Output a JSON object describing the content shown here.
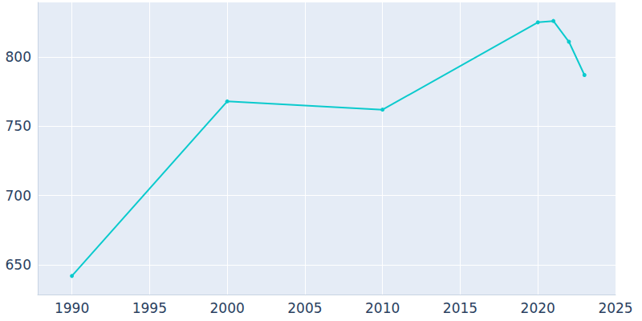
{
  "chart_data": {
    "type": "line",
    "x": [
      1990,
      2000,
      2010,
      2020,
      2021,
      2022,
      2023
    ],
    "values": [
      642,
      768,
      762,
      825,
      826,
      811,
      787
    ],
    "color": "#0bcacd",
    "marker": "circle",
    "xlim": [
      1987.8,
      2025
    ],
    "xticks": [
      1990,
      1995,
      2000,
      2005,
      2010,
      2015,
      2020,
      2025
    ],
    "ylim": [
      628.6,
      839.4
    ],
    "yticks": [
      650,
      700,
      750,
      800
    ],
    "grid": true
  }
}
